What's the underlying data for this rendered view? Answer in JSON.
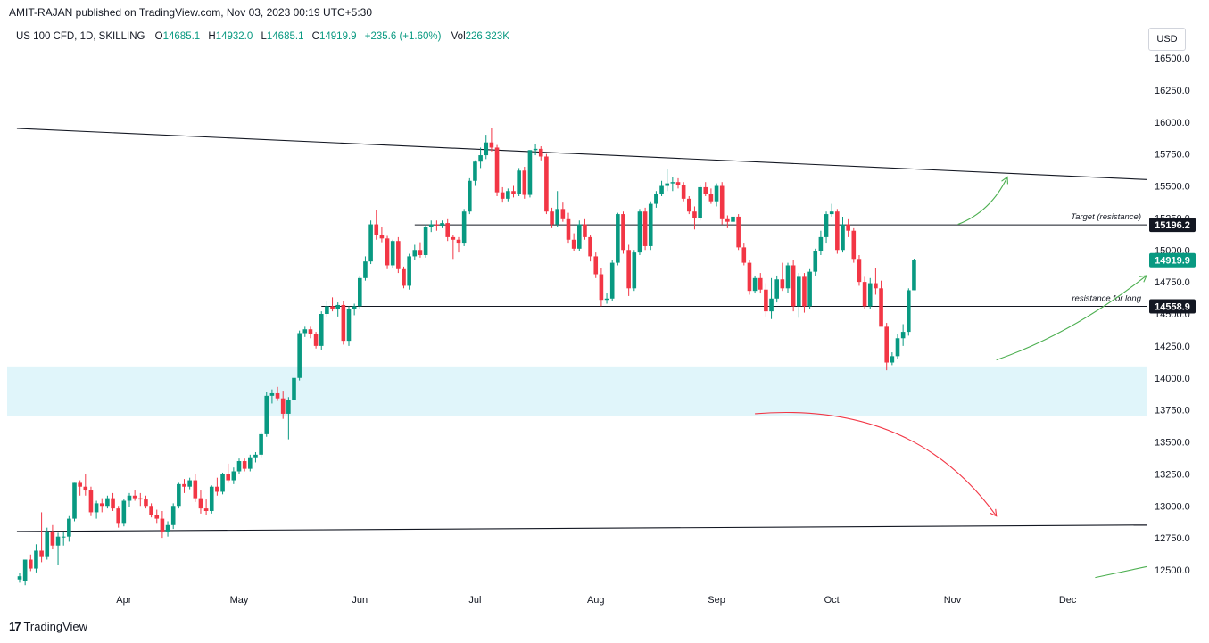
{
  "header": {
    "published_line": "AMIT-RAJAN published on TradingView.com, Nov 03, 2023 00:19 UTC+5:30",
    "symbol_line": "US 100 CFD, 1D, SKILLING",
    "ohlc": {
      "o_label": "O",
      "o_value": "14685.1",
      "h_label": "H",
      "h_value": "14932.0",
      "l_label": "L",
      "l_value": "14685.1",
      "c_label": "C",
      "c_value": "14919.9",
      "change": "+235.6 (+1.60%)",
      "vol_label": "Vol",
      "vol_value": "226.323K"
    }
  },
  "currency_button": "USD",
  "footer": {
    "brand": "TradingView",
    "logo_glyph": "17"
  },
  "colors": {
    "up": "#089981",
    "down": "#f23645",
    "zone": "#e0f5fa",
    "arrow_green": "#4caf50",
    "arrow_red": "#f23645"
  },
  "chart_data": {
    "type": "candlestick",
    "symbol": "US 100 CFD",
    "interval": "1D",
    "ylim": [
      12350,
      16700
    ],
    "y_ticks": [
      16500,
      16250,
      16000,
      15750,
      15500,
      15250,
      15000,
      14750,
      14500,
      14250,
      14000,
      13750,
      13500,
      13250,
      13000,
      12750,
      12500
    ],
    "y_tick_labels": [
      "16500.0",
      "16250.0",
      "16000.0",
      "15750.0",
      "15500.0",
      "15250.0",
      "15000.0",
      "14750.0",
      "14500.0",
      "14250.0",
      "14000.0",
      "13750.0",
      "13500.0",
      "13250.0",
      "13000.0",
      "12750.0",
      "12500.0"
    ],
    "x_labels": [
      {
        "label": "Apr",
        "day": 19
      },
      {
        "label": "May",
        "day": 40
      },
      {
        "label": "Jun",
        "day": 62
      },
      {
        "label": "Jul",
        "day": 83
      },
      {
        "label": "Aug",
        "day": 105
      },
      {
        "label": "Sep",
        "day": 127
      },
      {
        "label": "Oct",
        "day": 148
      },
      {
        "label": "Nov",
        "day": 170
      },
      {
        "label": "Dec",
        "day": 191
      }
    ],
    "x_range": [
      -0.5,
      207
    ],
    "current_price_label": "14919.9",
    "price_labels": [
      {
        "value": 15196.2,
        "text": "15196.2",
        "style": "dark"
      },
      {
        "value": 14919.9,
        "text": "14919.9",
        "style": "up"
      },
      {
        "value": 14558.9,
        "text": "14558.9",
        "style": "dark"
      }
    ],
    "horizontal_lines": [
      {
        "value": 15196.2,
        "from_day": 72,
        "label": "Target (resistance)"
      },
      {
        "value": 14558.9,
        "from_day": 55,
        "label": "resistance for long"
      }
    ],
    "trend_lines": [
      {
        "from": {
          "day": -0.5,
          "price": 15950
        },
        "to": {
          "day": 207,
          "price": 15550
        }
      },
      {
        "from": {
          "day": -0.5,
          "price": 12800
        },
        "to": {
          "day": 207,
          "price": 12850
        }
      }
    ],
    "zone": {
      "low": 13700,
      "high": 14090,
      "label": ""
    },
    "arrows": [
      {
        "color": "green",
        "points": [
          {
            "day": 171,
            "price": 15200
          },
          {
            "day": 177,
            "price": 15300
          },
          {
            "day": 180,
            "price": 15570
          }
        ]
      },
      {
        "color": "green",
        "points": [
          {
            "day": 178,
            "price": 14140
          },
          {
            "day": 192,
            "price": 14350
          },
          {
            "day": 207,
            "price": 14800
          }
        ]
      },
      {
        "color": "red",
        "points": [
          {
            "day": 134,
            "price": 13720
          },
          {
            "day": 163,
            "price": 13820
          },
          {
            "day": 178,
            "price": 12920
          }
        ]
      },
      {
        "color": "green",
        "points": [
          {
            "day": 196,
            "price": 12440
          },
          {
            "day": 207,
            "price": 12525
          }
        ]
      }
    ],
    "candles": [
      {
        "o": 12425,
        "h": 12475,
        "l": 12400,
        "c": 12450
      },
      {
        "o": 12410,
        "h": 12580,
        "l": 12380,
        "c": 12580
      },
      {
        "o": 12580,
        "h": 12620,
        "l": 12490,
        "c": 12510
      },
      {
        "o": 12510,
        "h": 12700,
        "l": 12480,
        "c": 12650
      },
      {
        "o": 12650,
        "h": 12950,
        "l": 12560,
        "c": 12600
      },
      {
        "o": 12600,
        "h": 12830,
        "l": 12580,
        "c": 12800
      },
      {
        "o": 12800,
        "h": 12850,
        "l": 12660,
        "c": 12690
      },
      {
        "o": 12690,
        "h": 12790,
        "l": 12540,
        "c": 12760
      },
      {
        "o": 12760,
        "h": 12800,
        "l": 12690,
        "c": 12760
      },
      {
        "o": 12760,
        "h": 12920,
        "l": 12720,
        "c": 12900
      },
      {
        "o": 12900,
        "h": 13180,
        "l": 12880,
        "c": 13180
      },
      {
        "o": 13180,
        "h": 13200,
        "l": 13080,
        "c": 13150
      },
      {
        "o": 13150,
        "h": 13250,
        "l": 13080,
        "c": 13120
      },
      {
        "o": 13120,
        "h": 13150,
        "l": 12920,
        "c": 12950
      },
      {
        "o": 12950,
        "h": 13040,
        "l": 12900,
        "c": 13020
      },
      {
        "o": 13020,
        "h": 13060,
        "l": 12950,
        "c": 13000
      },
      {
        "o": 13000,
        "h": 13080,
        "l": 12980,
        "c": 13060
      },
      {
        "o": 13060,
        "h": 13100,
        "l": 12960,
        "c": 12980
      },
      {
        "o": 12980,
        "h": 13000,
        "l": 12830,
        "c": 12860
      },
      {
        "o": 12860,
        "h": 13050,
        "l": 12840,
        "c": 13040
      },
      {
        "o": 13040,
        "h": 13100,
        "l": 12990,
        "c": 13080
      },
      {
        "o": 13080,
        "h": 13120,
        "l": 13040,
        "c": 13060
      },
      {
        "o": 13060,
        "h": 13100,
        "l": 13000,
        "c": 13050
      },
      {
        "o": 13050,
        "h": 13080,
        "l": 12980,
        "c": 13000
      },
      {
        "o": 13000,
        "h": 13020,
        "l": 12910,
        "c": 12930
      },
      {
        "o": 12930,
        "h": 12970,
        "l": 12860,
        "c": 12900
      },
      {
        "o": 12900,
        "h": 12960,
        "l": 12750,
        "c": 12800
      },
      {
        "o": 12800,
        "h": 12880,
        "l": 12760,
        "c": 12850
      },
      {
        "o": 12850,
        "h": 13020,
        "l": 12820,
        "c": 13000
      },
      {
        "o": 13000,
        "h": 13180,
        "l": 12980,
        "c": 13170
      },
      {
        "o": 13170,
        "h": 13210,
        "l": 13100,
        "c": 13150
      },
      {
        "o": 13150,
        "h": 13220,
        "l": 13130,
        "c": 13200
      },
      {
        "o": 13200,
        "h": 13250,
        "l": 13030,
        "c": 13060
      },
      {
        "o": 13060,
        "h": 13120,
        "l": 12940,
        "c": 12980
      },
      {
        "o": 12980,
        "h": 13050,
        "l": 12930,
        "c": 12960
      },
      {
        "o": 12960,
        "h": 13160,
        "l": 12940,
        "c": 13150
      },
      {
        "o": 13150,
        "h": 13220,
        "l": 13080,
        "c": 13110
      },
      {
        "o": 13110,
        "h": 13260,
        "l": 13090,
        "c": 13250
      },
      {
        "o": 13250,
        "h": 13330,
        "l": 13180,
        "c": 13200
      },
      {
        "o": 13200,
        "h": 13300,
        "l": 13170,
        "c": 13270
      },
      {
        "o": 13270,
        "h": 13370,
        "l": 13250,
        "c": 13350
      },
      {
        "o": 13350,
        "h": 13370,
        "l": 13270,
        "c": 13290
      },
      {
        "o": 13290,
        "h": 13400,
        "l": 13270,
        "c": 13380
      },
      {
        "o": 13380,
        "h": 13420,
        "l": 13340,
        "c": 13400
      },
      {
        "o": 13400,
        "h": 13580,
        "l": 13380,
        "c": 13560
      },
      {
        "o": 13560,
        "h": 13890,
        "l": 13540,
        "c": 13860
      },
      {
        "o": 13860,
        "h": 13910,
        "l": 13800,
        "c": 13880
      },
      {
        "o": 13880,
        "h": 13930,
        "l": 13820,
        "c": 13840
      },
      {
        "o": 13840,
        "h": 13900,
        "l": 13680,
        "c": 13720
      },
      {
        "o": 13720,
        "h": 13850,
        "l": 13520,
        "c": 13830
      },
      {
        "o": 13830,
        "h": 14020,
        "l": 13800,
        "c": 14000
      },
      {
        "o": 14000,
        "h": 14370,
        "l": 13980,
        "c": 14350
      },
      {
        "o": 14350,
        "h": 14400,
        "l": 14320,
        "c": 14380
      },
      {
        "o": 14380,
        "h": 14400,
        "l": 14310,
        "c": 14340
      },
      {
        "o": 14340,
        "h": 14360,
        "l": 14230,
        "c": 14250
      },
      {
        "o": 14250,
        "h": 14520,
        "l": 14220,
        "c": 14500
      },
      {
        "o": 14500,
        "h": 14600,
        "l": 14480,
        "c": 14560
      },
      {
        "o": 14560,
        "h": 14630,
        "l": 14520,
        "c": 14540
      },
      {
        "o": 14540,
        "h": 14590,
        "l": 14480,
        "c": 14570
      },
      {
        "o": 14570,
        "h": 14600,
        "l": 14260,
        "c": 14290
      },
      {
        "o": 14290,
        "h": 14560,
        "l": 14250,
        "c": 14540
      },
      {
        "o": 14540,
        "h": 14580,
        "l": 14490,
        "c": 14560
      },
      {
        "o": 14560,
        "h": 14800,
        "l": 14540,
        "c": 14780
      },
      {
        "o": 14780,
        "h": 14950,
        "l": 14760,
        "c": 14910
      },
      {
        "o": 14910,
        "h": 15230,
        "l": 14890,
        "c": 15200
      },
      {
        "o": 15200,
        "h": 15310,
        "l": 15080,
        "c": 15120
      },
      {
        "o": 15120,
        "h": 15180,
        "l": 15060,
        "c": 15090
      },
      {
        "o": 15090,
        "h": 15110,
        "l": 14850,
        "c": 14880
      },
      {
        "o": 14880,
        "h": 15080,
        "l": 14860,
        "c": 15070
      },
      {
        "o": 15070,
        "h": 15100,
        "l": 14820,
        "c": 14850
      },
      {
        "o": 14850,
        "h": 14870,
        "l": 14700,
        "c": 14720
      },
      {
        "o": 14720,
        "h": 14970,
        "l": 14690,
        "c": 14950
      },
      {
        "o": 14950,
        "h": 15040,
        "l": 14920,
        "c": 15000
      },
      {
        "o": 15000,
        "h": 15060,
        "l": 14940,
        "c": 14960
      },
      {
        "o": 14960,
        "h": 15200,
        "l": 14940,
        "c": 15180
      },
      {
        "o": 15180,
        "h": 15230,
        "l": 15140,
        "c": 15200
      },
      {
        "o": 15200,
        "h": 15230,
        "l": 15150,
        "c": 15190
      },
      {
        "o": 15190,
        "h": 15230,
        "l": 15170,
        "c": 15210
      },
      {
        "o": 15210,
        "h": 15240,
        "l": 15070,
        "c": 15100
      },
      {
        "o": 15100,
        "h": 15120,
        "l": 14930,
        "c": 15080
      },
      {
        "o": 15080,
        "h": 15100,
        "l": 14980,
        "c": 15050
      },
      {
        "o": 15050,
        "h": 15320,
        "l": 15030,
        "c": 15300
      },
      {
        "o": 15300,
        "h": 15560,
        "l": 15280,
        "c": 15540
      },
      {
        "o": 15540,
        "h": 15700,
        "l": 15500,
        "c": 15690
      },
      {
        "o": 15690,
        "h": 15800,
        "l": 15640,
        "c": 15740
      },
      {
        "o": 15740,
        "h": 15900,
        "l": 15710,
        "c": 15840
      },
      {
        "o": 15840,
        "h": 15950,
        "l": 15770,
        "c": 15800
      },
      {
        "o": 15800,
        "h": 15820,
        "l": 15420,
        "c": 15450
      },
      {
        "o": 15450,
        "h": 15490,
        "l": 15370,
        "c": 15400
      },
      {
        "o": 15400,
        "h": 15480,
        "l": 15380,
        "c": 15460
      },
      {
        "o": 15460,
        "h": 15500,
        "l": 15410,
        "c": 15440
      },
      {
        "o": 15440,
        "h": 15640,
        "l": 15420,
        "c": 15620
      },
      {
        "o": 15620,
        "h": 15650,
        "l": 15400,
        "c": 15430
      },
      {
        "o": 15430,
        "h": 15780,
        "l": 15410,
        "c": 15780
      },
      {
        "o": 15780,
        "h": 15830,
        "l": 15740,
        "c": 15790
      },
      {
        "o": 15790,
        "h": 15810,
        "l": 15700,
        "c": 15730
      },
      {
        "o": 15730,
        "h": 15750,
        "l": 15280,
        "c": 15300
      },
      {
        "o": 15300,
        "h": 15330,
        "l": 15170,
        "c": 15200
      },
      {
        "o": 15200,
        "h": 15460,
        "l": 15180,
        "c": 15320
      },
      {
        "o": 15320,
        "h": 15370,
        "l": 15220,
        "c": 15240
      },
      {
        "o": 15240,
        "h": 15290,
        "l": 15050,
        "c": 15080
      },
      {
        "o": 15080,
        "h": 15130,
        "l": 14990,
        "c": 15010
      },
      {
        "o": 15010,
        "h": 15230,
        "l": 14990,
        "c": 15200
      },
      {
        "o": 15200,
        "h": 15240,
        "l": 15080,
        "c": 15100
      },
      {
        "o": 15100,
        "h": 15120,
        "l": 14910,
        "c": 14950
      },
      {
        "o": 14950,
        "h": 14980,
        "l": 14780,
        "c": 14810
      },
      {
        "o": 14810,
        "h": 14860,
        "l": 14560,
        "c": 14610
      },
      {
        "o": 14610,
        "h": 14660,
        "l": 14580,
        "c": 14620
      },
      {
        "o": 14620,
        "h": 14920,
        "l": 14600,
        "c": 14900
      },
      {
        "o": 14900,
        "h": 15290,
        "l": 14880,
        "c": 15280
      },
      {
        "o": 15280,
        "h": 15300,
        "l": 14970,
        "c": 15000
      },
      {
        "o": 15000,
        "h": 15040,
        "l": 14640,
        "c": 14700
      },
      {
        "o": 14700,
        "h": 15000,
        "l": 14680,
        "c": 14980
      },
      {
        "o": 14980,
        "h": 15320,
        "l": 14960,
        "c": 15300
      },
      {
        "o": 15300,
        "h": 15330,
        "l": 15000,
        "c": 15030
      },
      {
        "o": 15030,
        "h": 15380,
        "l": 15000,
        "c": 15360
      },
      {
        "o": 15360,
        "h": 15460,
        "l": 15330,
        "c": 15440
      },
      {
        "o": 15440,
        "h": 15540,
        "l": 15420,
        "c": 15500
      },
      {
        "o": 15500,
        "h": 15630,
        "l": 15460,
        "c": 15520
      },
      {
        "o": 15520,
        "h": 15570,
        "l": 15460,
        "c": 15530
      },
      {
        "o": 15530,
        "h": 15560,
        "l": 15480,
        "c": 15510
      },
      {
        "o": 15510,
        "h": 15530,
        "l": 15380,
        "c": 15400
      },
      {
        "o": 15400,
        "h": 15420,
        "l": 15280,
        "c": 15300
      },
      {
        "o": 15300,
        "h": 15340,
        "l": 15160,
        "c": 15250
      },
      {
        "o": 15250,
        "h": 15510,
        "l": 15230,
        "c": 15490
      },
      {
        "o": 15490,
        "h": 15530,
        "l": 15420,
        "c": 15440
      },
      {
        "o": 15440,
        "h": 15480,
        "l": 15360,
        "c": 15380
      },
      {
        "o": 15380,
        "h": 15520,
        "l": 15340,
        "c": 15500
      },
      {
        "o": 15500,
        "h": 15530,
        "l": 15200,
        "c": 15240
      },
      {
        "o": 15240,
        "h": 15270,
        "l": 15170,
        "c": 15220
      },
      {
        "o": 15220,
        "h": 15280,
        "l": 15180,
        "c": 15260
      },
      {
        "o": 15260,
        "h": 15280,
        "l": 15000,
        "c": 15020
      },
      {
        "o": 15020,
        "h": 15050,
        "l": 14880,
        "c": 14900
      },
      {
        "o": 14900,
        "h": 14920,
        "l": 14650,
        "c": 14680
      },
      {
        "o": 14680,
        "h": 14800,
        "l": 14660,
        "c": 14780
      },
      {
        "o": 14780,
        "h": 14820,
        "l": 14660,
        "c": 14690
      },
      {
        "o": 14690,
        "h": 14740,
        "l": 14480,
        "c": 14520
      },
      {
        "o": 14520,
        "h": 14780,
        "l": 14460,
        "c": 14620
      },
      {
        "o": 14620,
        "h": 14800,
        "l": 14590,
        "c": 14770
      },
      {
        "o": 14770,
        "h": 14900,
        "l": 14680,
        "c": 14700
      },
      {
        "o": 14700,
        "h": 14900,
        "l": 14660,
        "c": 14880
      },
      {
        "o": 14880,
        "h": 14920,
        "l": 14520,
        "c": 14560
      },
      {
        "o": 14560,
        "h": 14820,
        "l": 14470,
        "c": 14790
      },
      {
        "o": 14790,
        "h": 14820,
        "l": 14510,
        "c": 14560
      },
      {
        "o": 14560,
        "h": 14850,
        "l": 14540,
        "c": 14830
      },
      {
        "o": 14830,
        "h": 15010,
        "l": 14800,
        "c": 14990
      },
      {
        "o": 14990,
        "h": 15150,
        "l": 14960,
        "c": 15100
      },
      {
        "o": 15100,
        "h": 15300,
        "l": 15050,
        "c": 15280
      },
      {
        "o": 15280,
        "h": 15360,
        "l": 15260,
        "c": 15300
      },
      {
        "o": 15300,
        "h": 15320,
        "l": 14970,
        "c": 15000
      },
      {
        "o": 15000,
        "h": 15260,
        "l": 14980,
        "c": 15200
      },
      {
        "o": 15200,
        "h": 15240,
        "l": 15100,
        "c": 15150
      },
      {
        "o": 15150,
        "h": 15170,
        "l": 14900,
        "c": 14930
      },
      {
        "o": 14930,
        "h": 14960,
        "l": 14720,
        "c": 14750
      },
      {
        "o": 14750,
        "h": 14790,
        "l": 14540,
        "c": 14560
      },
      {
        "o": 14560,
        "h": 14780,
        "l": 14540,
        "c": 14740
      },
      {
        "o": 14740,
        "h": 14860,
        "l": 14650,
        "c": 14700
      },
      {
        "o": 14700,
        "h": 14760,
        "l": 14410,
        "c": 14400
      },
      {
        "o": 14400,
        "h": 14430,
        "l": 14060,
        "c": 14120
      },
      {
        "o": 14120,
        "h": 14200,
        "l": 14100,
        "c": 14170
      },
      {
        "o": 14170,
        "h": 14340,
        "l": 14150,
        "c": 14310
      },
      {
        "o": 14310,
        "h": 14420,
        "l": 14250,
        "c": 14360
      },
      {
        "o": 14360,
        "h": 14700,
        "l": 14330,
        "c": 14685
      },
      {
        "o": 14685.1,
        "h": 14932,
        "l": 14685.1,
        "c": 14919.9
      }
    ]
  }
}
